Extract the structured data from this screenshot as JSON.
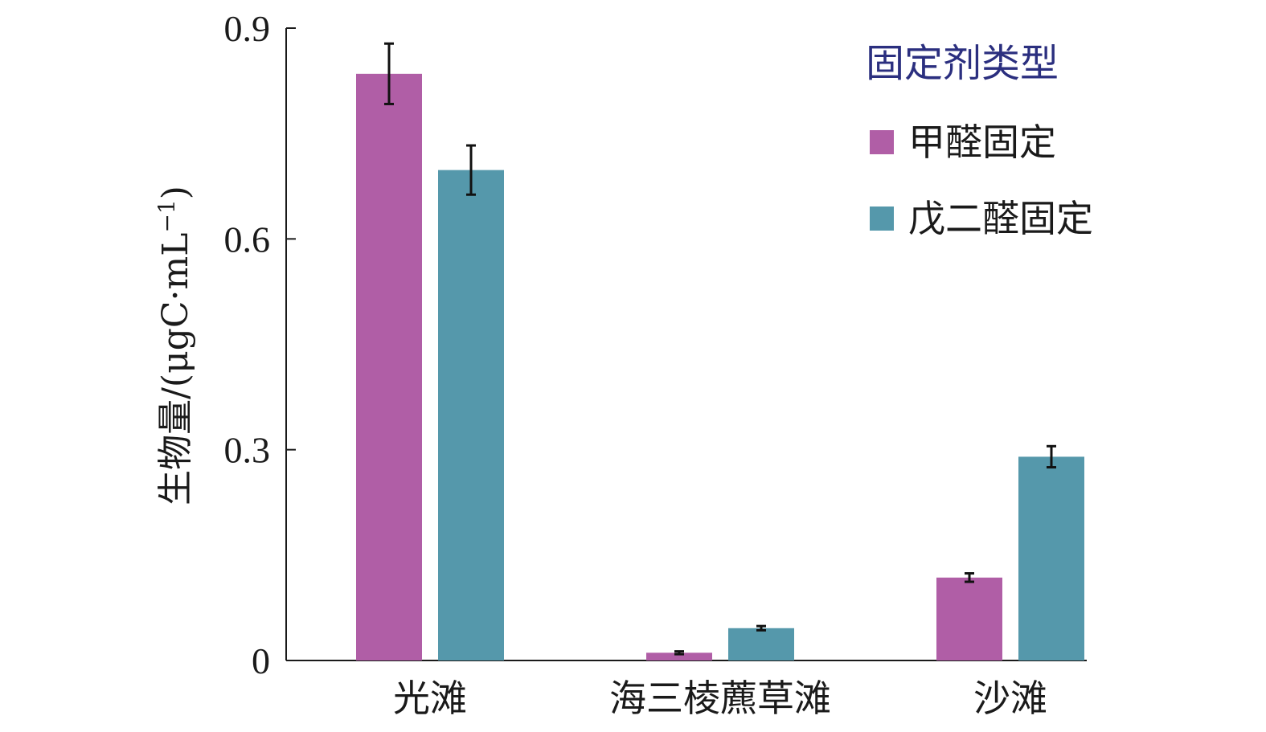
{
  "chart_data": {
    "type": "bar",
    "categories": [
      "光滩",
      "海三棱藨草滩",
      "沙滩"
    ],
    "series": [
      {
        "name": "甲醛固定",
        "color": "#b05ea6",
        "values": [
          0.835,
          0.011,
          0.118
        ],
        "errors": [
          0.043,
          0.002,
          0.006
        ]
      },
      {
        "name": "戊二醛固定",
        "color": "#5598ab",
        "values": [
          0.698,
          0.046,
          0.29
        ],
        "errors": [
          0.035,
          0.003,
          0.015
        ]
      }
    ],
    "title": "",
    "xlabel": "",
    "ylabel": "生物量/(μgC·mL",
    "ylabel_sup": "−1",
    "ylabel_close": ")",
    "ylim": [
      0,
      0.9
    ],
    "yticks": [
      0,
      0.3,
      0.6,
      0.9
    ],
    "ytick_labels": [
      "0",
      "0.3",
      "0.6",
      "0.9"
    ],
    "legend": {
      "title": "固定剂类型",
      "placement": "top-right",
      "title_color": "#2b2f7f"
    },
    "grid": false
  }
}
